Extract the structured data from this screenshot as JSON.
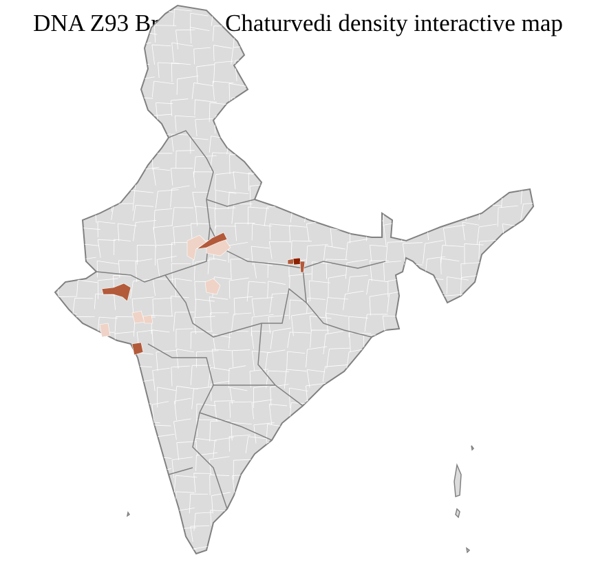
{
  "title": "DNA Z93 Brahmin Chaturvedi density interactive map",
  "colors": {
    "land": "#dcdcdc",
    "district_border": "#ffffff",
    "state_border": "#808080",
    "density_low": "#efd3c6",
    "density_mid": "#b35a3a",
    "density_high": "#8b2000"
  }
}
